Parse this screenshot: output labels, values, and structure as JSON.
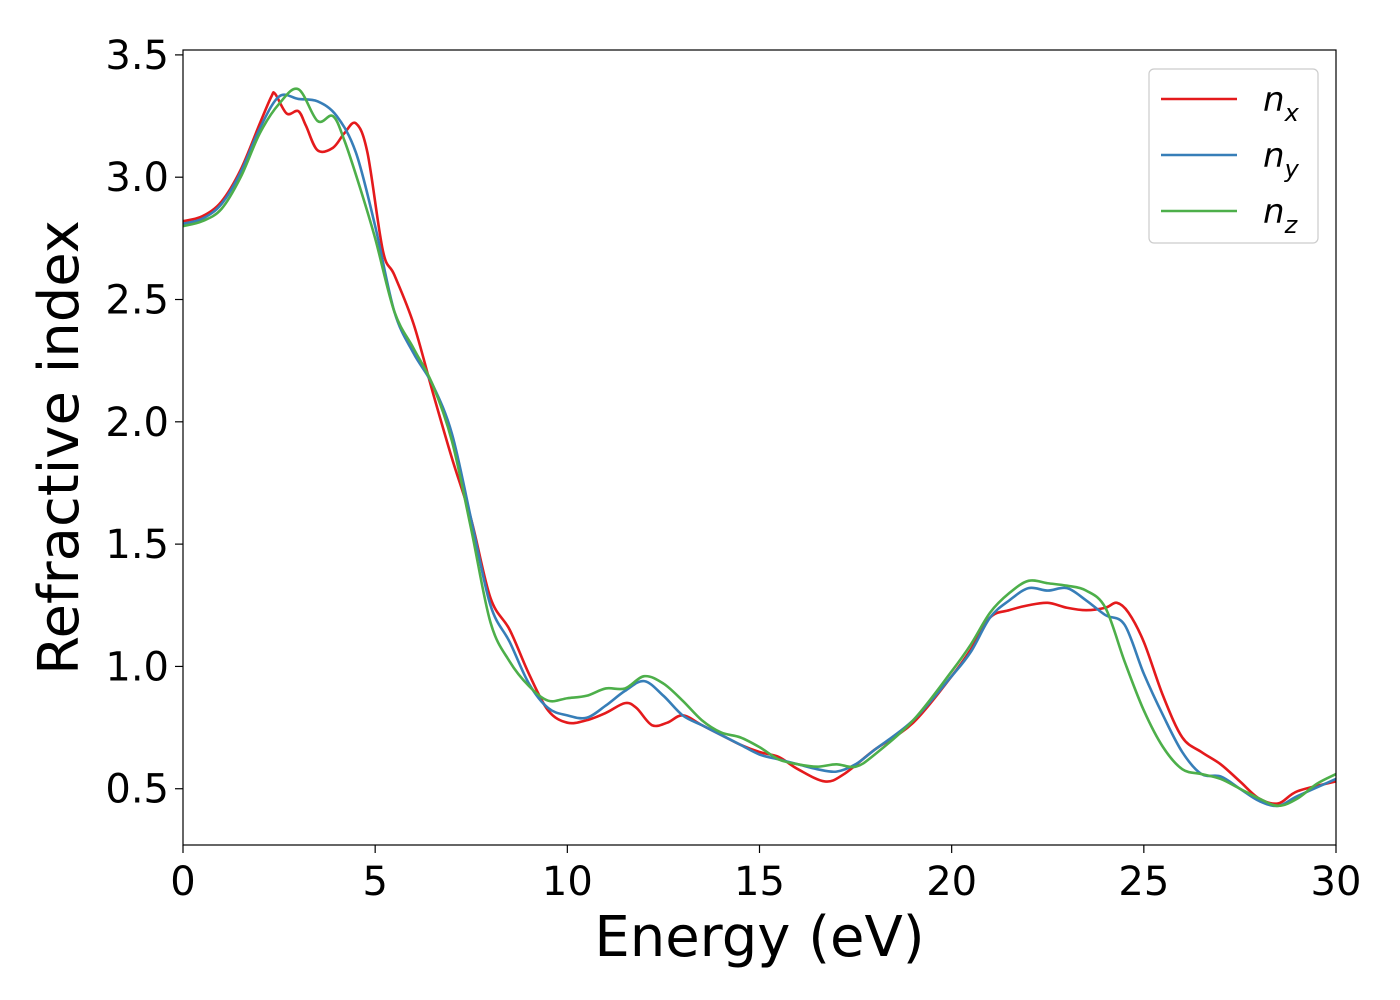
{
  "chart_data": {
    "type": "line",
    "xlabel": "Energy (eV)",
    "ylabel": "Refractive index",
    "xlim": [
      0,
      30
    ],
    "ylim": [
      0.27,
      3.52
    ],
    "xticks": [
      0,
      5,
      10,
      15,
      20,
      25,
      30
    ],
    "xtick_labels": [
      "0",
      "5",
      "10",
      "15",
      "20",
      "25",
      "30"
    ],
    "yticks": [
      0.5,
      1.0,
      1.5,
      2.0,
      2.5,
      3.0,
      3.5
    ],
    "ytick_labels": [
      "0.5",
      "1.0",
      "1.5",
      "2.0",
      "2.5",
      "3.0",
      "3.5"
    ],
    "grid": false,
    "legend_position": "top-right",
    "series": [
      {
        "name": "n_x",
        "legend_base": "n",
        "legend_sub": "x",
        "color": "#e41a1c",
        "x": [
          0,
          0.5,
          1,
          1.5,
          2,
          2.3,
          2.4,
          2.7,
          3.0,
          3.2,
          3.5,
          3.9,
          4.2,
          4.5,
          4.8,
          5.2,
          5.5,
          6.0,
          6.5,
          7.0,
          7.5,
          8.0,
          8.5,
          9.0,
          9.5,
          10.0,
          10.5,
          11.0,
          11.5,
          11.8,
          12.2,
          12.6,
          13.0,
          13.5,
          14.0,
          14.5,
          15.0,
          15.5,
          16.0,
          16.7,
          17.2,
          18.0,
          19.0,
          20.0,
          20.5,
          21.0,
          21.5,
          22.0,
          22.5,
          23.0,
          23.5,
          24.0,
          24.3,
          24.6,
          25.0,
          25.5,
          26.0,
          26.5,
          27.0,
          27.5,
          28.0,
          28.5,
          29.0,
          30.0
        ],
        "y": [
          2.82,
          2.84,
          2.9,
          3.03,
          3.22,
          3.33,
          3.34,
          3.26,
          3.27,
          3.21,
          3.11,
          3.12,
          3.18,
          3.22,
          3.1,
          2.7,
          2.6,
          2.4,
          2.12,
          1.85,
          1.6,
          1.28,
          1.15,
          0.97,
          0.82,
          0.77,
          0.78,
          0.81,
          0.85,
          0.83,
          0.76,
          0.77,
          0.8,
          0.76,
          0.72,
          0.68,
          0.65,
          0.63,
          0.58,
          0.53,
          0.56,
          0.66,
          0.77,
          0.96,
          1.07,
          1.2,
          1.23,
          1.25,
          1.26,
          1.24,
          1.23,
          1.24,
          1.26,
          1.22,
          1.1,
          0.88,
          0.71,
          0.65,
          0.6,
          0.53,
          0.46,
          0.44,
          0.49,
          0.53
        ]
      },
      {
        "name": "n_y",
        "legend_base": "n",
        "legend_sub": "y",
        "color": "#377eb8",
        "x": [
          0,
          0.5,
          1,
          1.5,
          2,
          2.5,
          3.0,
          3.5,
          4.0,
          4.5,
          5.0,
          5.5,
          6.0,
          6.5,
          7.0,
          7.5,
          8.0,
          8.5,
          9.0,
          9.5,
          10.0,
          10.5,
          11.0,
          11.5,
          12.0,
          12.5,
          13.0,
          13.5,
          14.0,
          14.5,
          15.0,
          15.5,
          16.0,
          16.5,
          17.0,
          17.5,
          18.0,
          19.0,
          20.0,
          20.5,
          21.0,
          21.5,
          22.0,
          22.5,
          23.0,
          23.5,
          24.0,
          24.5,
          25.0,
          25.5,
          26.0,
          26.5,
          27.0,
          27.5,
          28.0,
          28.5,
          29.0,
          30.0
        ],
        "y": [
          2.81,
          2.83,
          2.89,
          3.02,
          3.2,
          3.33,
          3.32,
          3.31,
          3.25,
          3.1,
          2.8,
          2.45,
          2.28,
          2.15,
          1.95,
          1.6,
          1.25,
          1.1,
          0.93,
          0.83,
          0.8,
          0.79,
          0.84,
          0.9,
          0.94,
          0.88,
          0.8,
          0.76,
          0.72,
          0.68,
          0.64,
          0.62,
          0.6,
          0.58,
          0.57,
          0.6,
          0.66,
          0.78,
          0.96,
          1.06,
          1.2,
          1.27,
          1.32,
          1.31,
          1.32,
          1.27,
          1.21,
          1.17,
          0.97,
          0.8,
          0.65,
          0.56,
          0.55,
          0.5,
          0.45,
          0.43,
          0.47,
          0.54
        ]
      },
      {
        "name": "n_z",
        "legend_base": "n",
        "legend_sub": "z",
        "color": "#4daf4a",
        "x": [
          0,
          0.5,
          1,
          1.5,
          2,
          2.5,
          3.0,
          3.5,
          3.9,
          4.2,
          4.6,
          5.0,
          5.5,
          6.0,
          6.5,
          7.0,
          7.5,
          8.0,
          8.5,
          9.0,
          9.5,
          10.0,
          10.5,
          11.0,
          11.5,
          12.0,
          12.5,
          13.0,
          13.5,
          14.0,
          14.5,
          15.0,
          15.5,
          16.0,
          16.5,
          17.0,
          17.5,
          18.0,
          19.0,
          20.0,
          20.5,
          21.0,
          21.5,
          22.0,
          22.5,
          23.0,
          23.5,
          24.0,
          24.5,
          25.0,
          25.5,
          26.0,
          26.5,
          27.0,
          27.5,
          28.0,
          28.5,
          29.0,
          29.5,
          30.0
        ],
        "y": [
          2.8,
          2.82,
          2.87,
          3.0,
          3.18,
          3.3,
          3.36,
          3.23,
          3.25,
          3.15,
          2.96,
          2.75,
          2.45,
          2.3,
          2.15,
          1.92,
          1.56,
          1.18,
          1.02,
          0.92,
          0.86,
          0.87,
          0.88,
          0.91,
          0.91,
          0.96,
          0.93,
          0.86,
          0.78,
          0.73,
          0.71,
          0.67,
          0.62,
          0.6,
          0.59,
          0.6,
          0.59,
          0.64,
          0.78,
          0.98,
          1.09,
          1.22,
          1.3,
          1.35,
          1.34,
          1.33,
          1.31,
          1.24,
          1.02,
          0.82,
          0.67,
          0.58,
          0.56,
          0.54,
          0.5,
          0.46,
          0.43,
          0.46,
          0.52,
          0.56
        ]
      }
    ]
  }
}
